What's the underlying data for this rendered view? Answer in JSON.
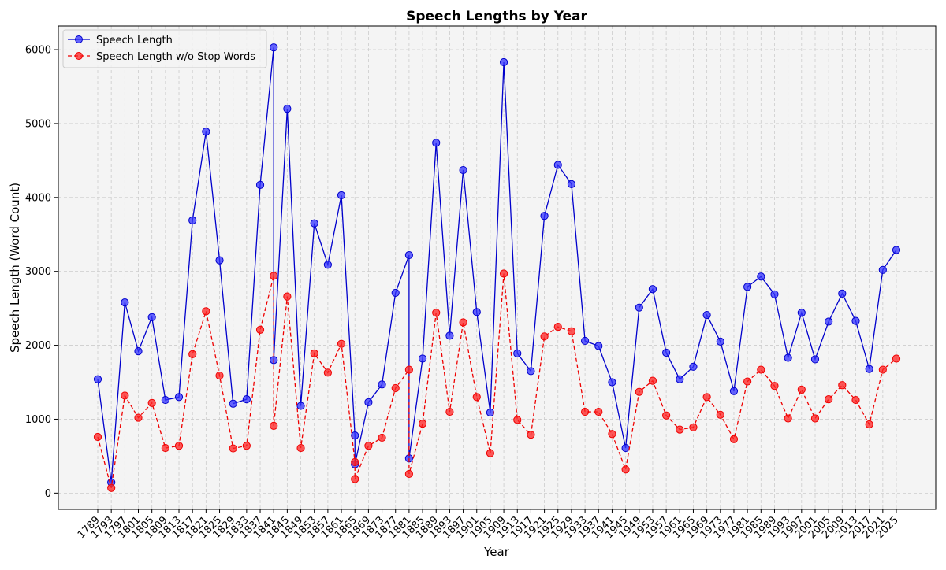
{
  "chart_data": {
    "type": "line",
    "title": "Speech Lengths by Year",
    "xlabel": "Year",
    "ylabel": "Speech Length (Word Count)",
    "ylim": [
      -220,
      6320
    ],
    "yticks": [
      0,
      1000,
      2000,
      3000,
      4000,
      5000,
      6000
    ],
    "grid": true,
    "legend_position": "top-left",
    "categories": [
      "1789",
      "1793",
      "1797",
      "1801",
      "1805",
      "1809",
      "1813",
      "1817",
      "1821",
      "1825",
      "1829",
      "1833",
      "1837",
      "1841",
      "1845",
      "1849",
      "1853",
      "1857",
      "1861",
      "1865",
      "1869",
      "1873",
      "1877",
      "1881",
      "1885",
      "1889",
      "1893",
      "1897",
      "1901",
      "1905",
      "1909",
      "1913",
      "1917",
      "1921",
      "1925",
      "1929",
      "1933",
      "1937",
      "1941",
      "1945",
      "1949",
      "1953",
      "1957",
      "1961",
      "1965",
      "1969",
      "1973",
      "1977",
      "1981",
      "1985",
      "1989",
      "1993",
      "1997",
      "2001",
      "2005",
      "2009",
      "2013",
      "2017",
      "2021",
      "2025"
    ],
    "series": [
      {
        "name": "Speech Length",
        "color": "#0000cc",
        "line_style": "solid",
        "points": [
          [
            0,
            1540
          ],
          [
            1,
            145
          ],
          [
            2,
            2580
          ],
          [
            3,
            1920
          ],
          [
            4,
            2380
          ],
          [
            5,
            1260
          ],
          [
            6,
            1300
          ],
          [
            7,
            3690
          ],
          [
            8,
            4890
          ],
          [
            9,
            3150
          ],
          [
            10,
            1210
          ],
          [
            11,
            1270
          ],
          [
            12,
            4170
          ],
          [
            13,
            6030
          ],
          [
            13,
            1800
          ],
          [
            14,
            5200
          ],
          [
            15,
            1180
          ],
          [
            16,
            3650
          ],
          [
            17,
            3090
          ],
          [
            18,
            4030
          ],
          [
            19,
            780
          ],
          [
            19,
            390
          ],
          [
            20,
            1230
          ],
          [
            21,
            1470
          ],
          [
            22,
            2710
          ],
          [
            23,
            3220
          ],
          [
            23,
            470
          ],
          [
            24,
            1820
          ],
          [
            25,
            4740
          ],
          [
            26,
            2130
          ],
          [
            27,
            4370
          ],
          [
            28,
            2450
          ],
          [
            29,
            1090
          ],
          [
            30,
            5830
          ],
          [
            31,
            1890
          ],
          [
            32,
            1650
          ],
          [
            33,
            3750
          ],
          [
            34,
            4440
          ],
          [
            35,
            4180
          ],
          [
            36,
            2060
          ],
          [
            37,
            1990
          ],
          [
            38,
            1500
          ],
          [
            39,
            610
          ],
          [
            40,
            2510
          ],
          [
            41,
            2760
          ],
          [
            42,
            1900
          ],
          [
            43,
            1540
          ],
          [
            44,
            1710
          ],
          [
            45,
            2410
          ],
          [
            46,
            2050
          ],
          [
            47,
            1380
          ],
          [
            48,
            2790
          ],
          [
            49,
            2930
          ],
          [
            50,
            2690
          ],
          [
            51,
            1830
          ],
          [
            52,
            2440
          ],
          [
            53,
            1810
          ],
          [
            54,
            2320
          ],
          [
            55,
            2700
          ],
          [
            56,
            2330
          ],
          [
            57,
            1680
          ],
          [
            58,
            3020
          ],
          [
            59,
            3290
          ]
        ]
      },
      {
        "name": "Speech Length w/o Stop Words",
        "color": "#ee0000",
        "line_style": "dashed",
        "points": [
          [
            0,
            760
          ],
          [
            1,
            70
          ],
          [
            2,
            1320
          ],
          [
            3,
            1020
          ],
          [
            4,
            1220
          ],
          [
            5,
            610
          ],
          [
            6,
            640
          ],
          [
            7,
            1880
          ],
          [
            8,
            2460
          ],
          [
            9,
            1590
          ],
          [
            10,
            605
          ],
          [
            11,
            640
          ],
          [
            12,
            2210
          ],
          [
            13,
            2940
          ],
          [
            13,
            910
          ],
          [
            14,
            2660
          ],
          [
            15,
            610
          ],
          [
            16,
            1890
          ],
          [
            17,
            1630
          ],
          [
            18,
            2020
          ],
          [
            19,
            420
          ],
          [
            19,
            190
          ],
          [
            20,
            640
          ],
          [
            21,
            750
          ],
          [
            22,
            1420
          ],
          [
            23,
            1670
          ],
          [
            23,
            260
          ],
          [
            24,
            940
          ],
          [
            25,
            2440
          ],
          [
            26,
            1100
          ],
          [
            27,
            2310
          ],
          [
            28,
            1300
          ],
          [
            29,
            540
          ],
          [
            30,
            2970
          ],
          [
            31,
            990
          ],
          [
            32,
            790
          ],
          [
            33,
            2120
          ],
          [
            34,
            2250
          ],
          [
            35,
            2190
          ],
          [
            36,
            1100
          ],
          [
            37,
            1100
          ],
          [
            38,
            800
          ],
          [
            39,
            320
          ],
          [
            40,
            1370
          ],
          [
            41,
            1520
          ],
          [
            42,
            1050
          ],
          [
            43,
            860
          ],
          [
            44,
            890
          ],
          [
            45,
            1300
          ],
          [
            46,
            1060
          ],
          [
            47,
            730
          ],
          [
            48,
            1510
          ],
          [
            49,
            1670
          ],
          [
            50,
            1450
          ],
          [
            51,
            1010
          ],
          [
            52,
            1400
          ],
          [
            53,
            1010
          ],
          [
            54,
            1270
          ],
          [
            55,
            1460
          ],
          [
            56,
            1260
          ],
          [
            57,
            930
          ],
          [
            58,
            1670
          ],
          [
            59,
            1820
          ]
        ]
      }
    ]
  },
  "style": {
    "plot_background": "#f4f4f4",
    "grid_color": "#cccccc",
    "axis_color": "#000000"
  }
}
